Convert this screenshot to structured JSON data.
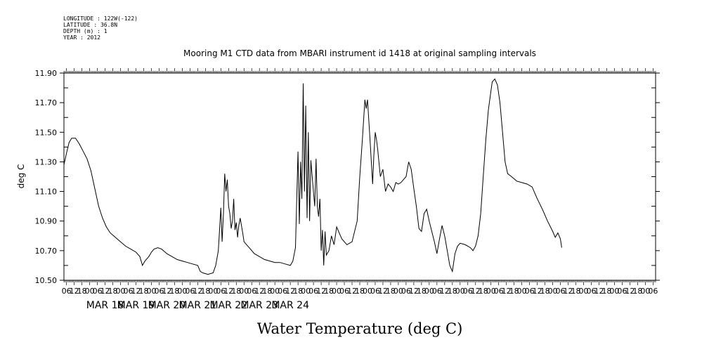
{
  "header": {
    "longitude": "LONGITUDE : 122W(-122)",
    "latitude": "LATITUDE : 36.8N",
    "depth": "DEPTH (m) : 1",
    "year": "YEAR : 2012"
  },
  "chart_data": {
    "type": "line",
    "title": "Mooring M1 CTD data from MBARI instrument id 1418 at original sampling intervals",
    "xlabel": "Water Temperature (deg C)",
    "ylabel": "deg C",
    "ylim": [
      10.5,
      11.9
    ],
    "xlim_hours": [
      -20,
      440
    ],
    "y_ticks": [
      "10.50",
      "10.70",
      "10.90",
      "11.10",
      "11.30",
      "11.50",
      "11.70",
      "11.90"
    ],
    "x_hour_ticks": [
      "00",
      "06",
      "12",
      "18"
    ],
    "x_date_labels": [
      "MAR 18",
      "MAR 19",
      "MAR 20",
      "MAR 21",
      "MAR 22",
      "MAR 23",
      "MAR 24"
    ],
    "x_axis_note": "x values are hours relative to 2012-03-18 00:00",
    "series": [
      {
        "points": [
          [
            -20,
            11.28
          ],
          [
            -18,
            11.36
          ],
          [
            -16,
            11.43
          ],
          [
            -14,
            11.46
          ],
          [
            -11,
            11.46
          ],
          [
            -8,
            11.42
          ],
          [
            -5,
            11.37
          ],
          [
            -2,
            11.32
          ],
          [
            1,
            11.24
          ],
          [
            4,
            11.12
          ],
          [
            7,
            11.0
          ],
          [
            10,
            10.92
          ],
          [
            13,
            10.86
          ],
          [
            16,
            10.82
          ],
          [
            20,
            10.79
          ],
          [
            24,
            10.76
          ],
          [
            28,
            10.73
          ],
          [
            32,
            10.71
          ],
          [
            36,
            10.69
          ],
          [
            39,
            10.66
          ],
          [
            41,
            10.6
          ],
          [
            43,
            10.63
          ],
          [
            46,
            10.66
          ],
          [
            48,
            10.69
          ],
          [
            50,
            10.71
          ],
          [
            53,
            10.72
          ],
          [
            56,
            10.71
          ],
          [
            60,
            10.68
          ],
          [
            64,
            10.66
          ],
          [
            68,
            10.64
          ],
          [
            72,
            10.63
          ],
          [
            76,
            10.62
          ],
          [
            80,
            10.61
          ],
          [
            84,
            10.6
          ],
          [
            86,
            10.56
          ],
          [
            88,
            10.55
          ],
          [
            92,
            10.54
          ],
          [
            96,
            10.55
          ],
          [
            98,
            10.6
          ],
          [
            100,
            10.7
          ],
          [
            102,
            10.99
          ],
          [
            103,
            10.76
          ],
          [
            104,
            10.95
          ],
          [
            105,
            11.22
          ],
          [
            106,
            11.1
          ],
          [
            107,
            11.18
          ],
          [
            108,
            11.0
          ],
          [
            109,
            10.95
          ],
          [
            110,
            10.85
          ],
          [
            111,
            10.9
          ],
          [
            112,
            11.05
          ],
          [
            113,
            10.84
          ],
          [
            114,
            10.89
          ],
          [
            115,
            10.79
          ],
          [
            116,
            10.87
          ],
          [
            117,
            10.92
          ],
          [
            118,
            10.87
          ],
          [
            119,
            10.82
          ],
          [
            120,
            10.76
          ],
          [
            122,
            10.74
          ],
          [
            124,
            10.72
          ],
          [
            128,
            10.68
          ],
          [
            132,
            10.66
          ],
          [
            136,
            10.64
          ],
          [
            140,
            10.63
          ],
          [
            144,
            10.62
          ],
          [
            148,
            10.62
          ],
          [
            152,
            10.61
          ],
          [
            156,
            10.6
          ],
          [
            158,
            10.63
          ],
          [
            160,
            10.72
          ],
          [
            161,
            11.05
          ],
          [
            162,
            11.37
          ],
          [
            163,
            10.88
          ],
          [
            164,
            11.3
          ],
          [
            165,
            11.05
          ],
          [
            166,
            11.83
          ],
          [
            167,
            11.1
          ],
          [
            168,
            11.68
          ],
          [
            169,
            10.92
          ],
          [
            170,
            11.5
          ],
          [
            171,
            10.9
          ],
          [
            172,
            11.31
          ],
          [
            173,
            11.2
          ],
          [
            174,
            11.1
          ],
          [
            175,
            11.0
          ],
          [
            176,
            11.32
          ],
          [
            177,
            11.0
          ],
          [
            178,
            10.93
          ],
          [
            179,
            11.05
          ],
          [
            180,
            10.7
          ],
          [
            181,
            10.84
          ],
          [
            182,
            10.6
          ],
          [
            183,
            10.83
          ],
          [
            184,
            10.67
          ],
          [
            186,
            10.7
          ],
          [
            188,
            10.8
          ],
          [
            190,
            10.74
          ],
          [
            192,
            10.86
          ],
          [
            194,
            10.82
          ],
          [
            196,
            10.78
          ],
          [
            198,
            10.76
          ],
          [
            200,
            10.74
          ],
          [
            204,
            10.76
          ],
          [
            208,
            10.9
          ],
          [
            210,
            11.2
          ],
          [
            212,
            11.45
          ],
          [
            214,
            11.72
          ],
          [
            215,
            11.66
          ],
          [
            216,
            11.72
          ],
          [
            218,
            11.45
          ],
          [
            220,
            11.15
          ],
          [
            221,
            11.35
          ],
          [
            222,
            11.5
          ],
          [
            223,
            11.45
          ],
          [
            224,
            11.38
          ],
          [
            226,
            11.2
          ],
          [
            228,
            11.25
          ],
          [
            230,
            11.1
          ],
          [
            232,
            11.15
          ],
          [
            234,
            11.13
          ],
          [
            236,
            11.1
          ],
          [
            238,
            11.16
          ],
          [
            240,
            11.15
          ],
          [
            242,
            11.16
          ],
          [
            244,
            11.18
          ],
          [
            246,
            11.2
          ],
          [
            248,
            11.3
          ],
          [
            250,
            11.25
          ],
          [
            252,
            11.12
          ],
          [
            254,
            11.0
          ],
          [
            256,
            10.85
          ],
          [
            258,
            10.83
          ],
          [
            260,
            10.95
          ],
          [
            262,
            10.98
          ],
          [
            264,
            10.9
          ],
          [
            266,
            10.83
          ],
          [
            268,
            10.76
          ],
          [
            270,
            10.68
          ],
          [
            272,
            10.78
          ],
          [
            274,
            10.87
          ],
          [
            276,
            10.8
          ],
          [
            278,
            10.7
          ],
          [
            280,
            10.6
          ],
          [
            282,
            10.56
          ],
          [
            284,
            10.68
          ],
          [
            286,
            10.73
          ],
          [
            288,
            10.75
          ],
          [
            292,
            10.74
          ],
          [
            296,
            10.72
          ],
          [
            298,
            10.7
          ],
          [
            300,
            10.73
          ],
          [
            302,
            10.8
          ],
          [
            304,
            10.95
          ],
          [
            306,
            11.2
          ],
          [
            308,
            11.45
          ],
          [
            310,
            11.65
          ],
          [
            312,
            11.78
          ],
          [
            313,
            11.84
          ],
          [
            315,
            11.86
          ],
          [
            317,
            11.82
          ],
          [
            319,
            11.7
          ],
          [
            321,
            11.5
          ],
          [
            323,
            11.3
          ],
          [
            325,
            11.22
          ],
          [
            328,
            11.2
          ],
          [
            332,
            11.17
          ],
          [
            336,
            11.16
          ],
          [
            340,
            11.15
          ],
          [
            344,
            11.13
          ],
          [
            348,
            11.05
          ],
          [
            352,
            10.98
          ],
          [
            356,
            10.9
          ],
          [
            360,
            10.83
          ],
          [
            362,
            10.79
          ],
          [
            364,
            10.82
          ],
          [
            366,
            10.78
          ],
          [
            367,
            10.72
          ]
        ]
      }
    ]
  }
}
